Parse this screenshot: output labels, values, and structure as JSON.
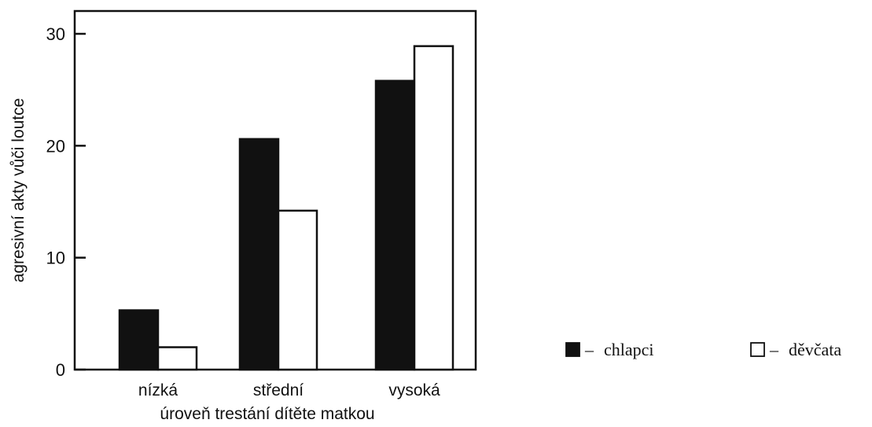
{
  "chart_data": {
    "type": "bar",
    "categories": [
      "nízká",
      "střední",
      "vysoká"
    ],
    "series": [
      {
        "name": "chlapci",
        "values": [
          5.3,
          20.6,
          25.8
        ],
        "color": "#111111"
      },
      {
        "name": "děvčata",
        "values": [
          2.0,
          14.2,
          28.9
        ],
        "color": "#ffffff"
      }
    ],
    "xlabel": "úroveň trestání dítěte matkou",
    "ylabel": "agresivní akty vůči loutce",
    "ylim": [
      0,
      32
    ],
    "yticks": [
      0,
      10,
      20,
      30
    ],
    "legend": {
      "placement": "bottom-right",
      "entries": [
        {
          "prefix": "– ",
          "label": "chlapci"
        },
        {
          "prefix": "– ",
          "label": "děvčata"
        }
      ]
    },
    "grid": false
  }
}
